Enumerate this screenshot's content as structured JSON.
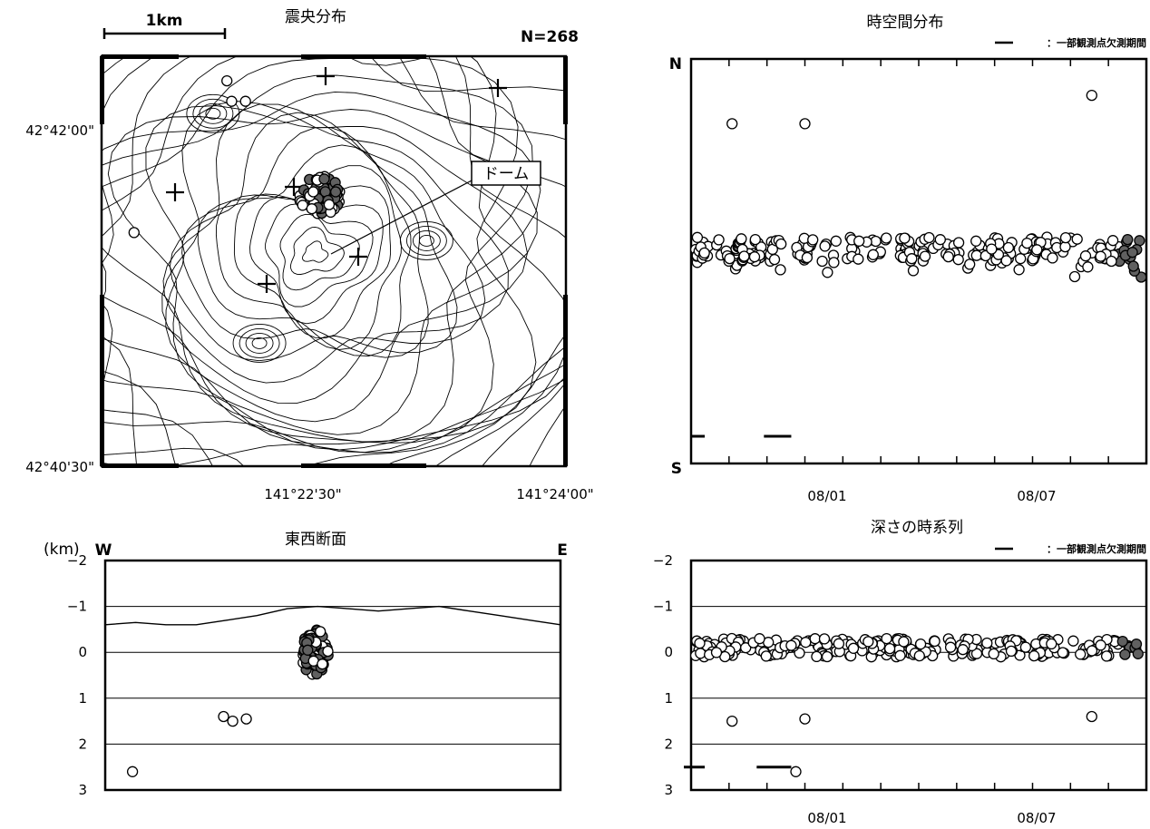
{
  "epicenter_map": {
    "title": "震央分布",
    "count_label": "N=268",
    "scale_label": "1km",
    "dome_label": "ドーム",
    "lat_ticks": [
      "42°42'00\"",
      "42°40'30\""
    ],
    "lon_ticks": [
      "141°22'30\"",
      "141°24'00\""
    ]
  },
  "space_time": {
    "title": "時空間分布",
    "legend": "：一部観測点欠測期間",
    "north_label": "N",
    "south_label": "S",
    "date_ticks": [
      "08/01",
      "08/07"
    ]
  },
  "ew_section": {
    "title": "東西断面",
    "unit_label": "(km)",
    "west_label": "W",
    "east_label": "E",
    "depth_ticks": [
      "−2",
      "−1",
      "0",
      "1",
      "2",
      "3"
    ]
  },
  "depth_series": {
    "title": "深さの時系列",
    "legend": "：一部観測点欠測期間",
    "depth_ticks": [
      "−2",
      "−1",
      "0",
      "1",
      "2",
      "3"
    ],
    "date_ticks": [
      "08/01",
      "08/07"
    ]
  },
  "colors": {
    "recent_event": "#606060",
    "past_event": "#ffffff",
    "stroke": "#000000"
  },
  "chart_data": [
    {
      "type": "scatter",
      "name": "epicenter_map",
      "xlabel": "",
      "ylabel": "",
      "grid": false,
      "outliers": [
        [
          0.27,
          0.06
        ],
        [
          0.28,
          0.11
        ],
        [
          0.31,
          0.11
        ],
        [
          0.07,
          0.43
        ]
      ],
      "cluster": {
        "center": [
          0.47,
          0.34
        ],
        "radius": [
          0.045,
          0.05
        ],
        "count": 95,
        "recent_fraction": 0.45
      }
    },
    {
      "type": "scatter",
      "name": "space_time",
      "xlabel": "",
      "ylabel": "",
      "grid": false,
      "y_range": [
        "S",
        "N"
      ],
      "outliers": [
        [
          0.09,
          0.84
        ],
        [
          0.25,
          0.84
        ],
        [
          0.88,
          0.91
        ]
      ],
      "band": {
        "center": 0.53,
        "spread": 0.03,
        "count": 250,
        "recent_from": 0.94
      },
      "missing_periods": [
        [
          0.0,
          0.03
        ],
        [
          0.16,
          0.22
        ]
      ]
    },
    {
      "type": "scatter",
      "name": "ew_section",
      "xlabel": "",
      "ylabel": "(km)",
      "ylim": [
        -2,
        3
      ],
      "grid": true,
      "topography_depth": [
        -0.6,
        -0.65,
        -0.6,
        -0.6,
        -0.7,
        -0.8,
        -0.95,
        -1.0,
        -0.95,
        -0.9,
        -0.95,
        -1.0,
        -0.9,
        -0.8,
        -0.7,
        -0.6
      ],
      "outliers": [
        [
          0.26,
          1.4
        ],
        [
          0.28,
          1.5
        ],
        [
          0.31,
          1.45
        ],
        [
          0.06,
          2.6
        ]
      ],
      "cluster": {
        "center": [
          0.46,
          0.0
        ],
        "radius": [
          0.03,
          0.2
        ],
        "count": 90,
        "recent_fraction": 0.5
      }
    },
    {
      "type": "scatter",
      "name": "depth_series",
      "xlabel": "",
      "ylabel": "",
      "ylim": [
        -2,
        3
      ],
      "grid": true,
      "outliers": [
        [
          0.09,
          1.5
        ],
        [
          0.25,
          1.45
        ],
        [
          0.88,
          1.4
        ],
        [
          0.23,
          2.6
        ]
      ],
      "band": {
        "center": -0.1,
        "spread": 0.2,
        "count": 250,
        "recent_from": 0.94
      },
      "missing_periods": [
        [
          0.0,
          0.03
        ],
        [
          0.16,
          0.22
        ]
      ]
    }
  ]
}
